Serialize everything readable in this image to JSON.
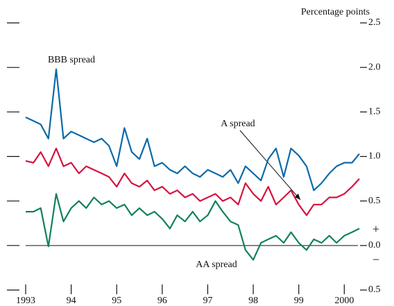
{
  "chart_data": {
    "type": "line",
    "y_label": "Percentage points",
    "sign_labels": [
      "+",
      "−"
    ],
    "x": [
      1993.0,
      1993.17,
      1993.33,
      1993.5,
      1993.67,
      1993.83,
      1994.0,
      1994.17,
      1994.33,
      1994.5,
      1994.67,
      1994.83,
      1995.0,
      1995.17,
      1995.33,
      1995.5,
      1995.67,
      1995.83,
      1996.0,
      1996.17,
      1996.33,
      1996.5,
      1996.67,
      1996.83,
      1997.0,
      1997.17,
      1997.33,
      1997.5,
      1997.67,
      1997.83,
      1998.0,
      1998.17,
      1998.33,
      1998.5,
      1998.67,
      1998.83,
      1999.0,
      1999.17,
      1999.33,
      1999.5,
      1999.67,
      1999.83,
      2000.0,
      2000.17,
      2000.33
    ],
    "series": [
      {
        "name": "BBB spread",
        "color": "#0b6aa8",
        "values": [
          1.44,
          1.4,
          1.36,
          1.2,
          1.98,
          1.2,
          1.28,
          1.24,
          1.2,
          1.16,
          1.2,
          1.12,
          0.89,
          1.32,
          1.05,
          0.97,
          1.2,
          0.89,
          0.93,
          0.85,
          0.81,
          0.89,
          0.81,
          0.77,
          0.85,
          0.81,
          0.77,
          0.85,
          0.7,
          0.89,
          0.81,
          0.73,
          0.97,
          1.09,
          0.77,
          1.09,
          1.01,
          0.89,
          0.62,
          0.7,
          0.81,
          0.89,
          0.93,
          0.93,
          1.03
        ]
      },
      {
        "name": "A spread",
        "color": "#d4143f",
        "values": [
          0.95,
          0.93,
          1.05,
          0.89,
          1.09,
          0.89,
          0.93,
          0.81,
          0.89,
          0.85,
          0.81,
          0.77,
          0.66,
          0.81,
          0.7,
          0.66,
          0.73,
          0.62,
          0.66,
          0.58,
          0.62,
          0.54,
          0.58,
          0.5,
          0.54,
          0.58,
          0.5,
          0.54,
          0.46,
          0.7,
          0.58,
          0.5,
          0.66,
          0.46,
          0.54,
          0.62,
          0.46,
          0.34,
          0.46,
          0.46,
          0.54,
          0.54,
          0.58,
          0.66,
          0.75
        ]
      },
      {
        "name": "AA spread",
        "color": "#128060",
        "values": [
          0.38,
          0.38,
          0.42,
          -0.01,
          0.58,
          0.27,
          0.42,
          0.5,
          0.42,
          0.54,
          0.46,
          0.5,
          0.42,
          0.46,
          0.34,
          0.42,
          0.34,
          0.38,
          0.3,
          0.19,
          0.34,
          0.27,
          0.38,
          0.27,
          0.34,
          0.5,
          0.38,
          0.27,
          0.23,
          -0.05,
          -0.16,
          0.03,
          0.07,
          0.11,
          0.03,
          0.15,
          0.03,
          -0.05,
          0.07,
          0.03,
          0.11,
          0.03,
          0.11,
          0.15,
          0.19
        ]
      }
    ],
    "xlim": [
      1993,
      2000.3
    ],
    "xticks": [
      {
        "value": 1993,
        "label": "1993"
      },
      {
        "value": 1994,
        "label": "94"
      },
      {
        "value": 1995,
        "label": "95"
      },
      {
        "value": 1996,
        "label": "96"
      },
      {
        "value": 1997,
        "label": "97"
      },
      {
        "value": 1998,
        "label": "98"
      },
      {
        "value": 1999,
        "label": "99"
      },
      {
        "value": 2000,
        "label": "2000"
      }
    ],
    "ylim": [
      -0.5,
      2.5
    ],
    "yticks": [
      {
        "value": -0.5,
        "label": "0.5"
      },
      {
        "value": 0,
        "label": "0.0"
      },
      0.5,
      {
        "value": 1,
        "label": "1.0"
      },
      1.5,
      {
        "value": 2,
        "label": "2.0"
      },
      2.5
    ]
  }
}
